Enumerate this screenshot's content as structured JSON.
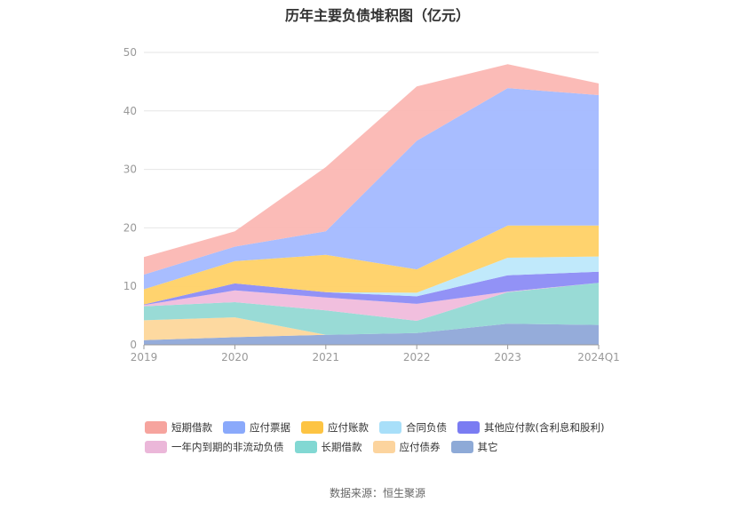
{
  "chart_data": {
    "type": "area",
    "stacked": true,
    "title": "历年主要负债堆积图（亿元）",
    "categories": [
      "2019",
      "2020",
      "2021",
      "2022",
      "2023",
      "2024Q1"
    ],
    "ylim": [
      0,
      50
    ],
    "yticks": [
      "0",
      "10",
      "20",
      "30",
      "40",
      "50"
    ],
    "grid": true,
    "legend_position": "bottom",
    "series": [
      {
        "name": "其它",
        "color": "#8FA8D8",
        "values": [
          0.8,
          1.3,
          1.7,
          2.0,
          3.6,
          3.4
        ]
      },
      {
        "name": "应付债券",
        "color": "#FDD79B",
        "values": [
          3.4,
          3.4,
          0.0,
          0.0,
          0.0,
          0.0
        ]
      },
      {
        "name": "长期借款",
        "color": "#94D9D4",
        "values": [
          2.4,
          2.6,
          4.2,
          2.1,
          5.4,
          7.2
        ]
      },
      {
        "name": "一年内到期的非流动负债",
        "color": "#F0BCDC",
        "values": [
          0.2,
          2.0,
          2.2,
          2.9,
          0.1,
          0.0
        ]
      },
      {
        "name": "其他应付款(含利息和股利)",
        "color": "#8C8CF5",
        "values": [
          0.1,
          1.2,
          0.9,
          1.3,
          2.8,
          1.9
        ]
      },
      {
        "name": "合同负债",
        "color": "#BDE8FB",
        "values": [
          0.0,
          0.0,
          0.0,
          0.6,
          3.0,
          2.6
        ]
      },
      {
        "name": "应付账款",
        "color": "#FFD166",
        "values": [
          2.6,
          3.8,
          6.4,
          4.0,
          5.5,
          5.3
        ]
      },
      {
        "name": "应付票据",
        "color": "#A3B9FF",
        "values": [
          2.5,
          2.5,
          4.0,
          22.0,
          23.5,
          22.3
        ]
      },
      {
        "name": "短期借款",
        "color": "#FBB7B3",
        "values": [
          3.0,
          2.6,
          11.0,
          9.3,
          4.1,
          2.0
        ]
      }
    ],
    "legend_order": [
      "短期借款",
      "应付票据",
      "应付账款",
      "合同负债",
      "其他应付款(含利息和股利)",
      "一年内到期的非流动负债",
      "长期借款",
      "应付债券",
      "其它"
    ],
    "legend_colors": {
      "短期借款": "#F6A49E",
      "应付票据": "#8AA9FB",
      "应付账款": "#FDC443",
      "合同负债": "#A8DFF9",
      "其他应付款(含利息和股利)": "#7A7CF2",
      "一年内到期的非流动负债": "#EBB7D9",
      "长期借款": "#82D8D3",
      "应付债券": "#FCD49E",
      "其它": "#8EAAD7"
    }
  },
  "footer": {
    "source": "数据来源：恒生聚源"
  }
}
